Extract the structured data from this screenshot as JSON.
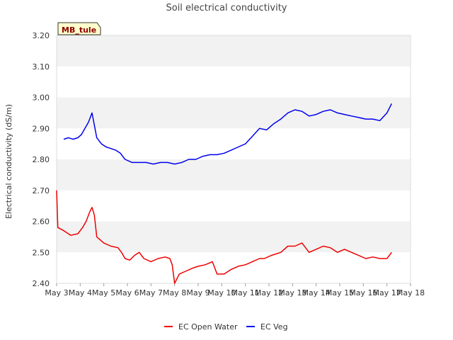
{
  "chart_data": {
    "type": "line",
    "title": "Soil electrical conductivity",
    "ylabel": "Electrical conductivity (dS/m)",
    "xlabel": "",
    "site_badge": "MB_tule",
    "ylim": [
      2.4,
      3.2
    ],
    "yticks": [
      "2.40",
      "2.50",
      "2.60",
      "2.70",
      "2.80",
      "2.90",
      "3.00",
      "3.10",
      "3.20"
    ],
    "xlim": [
      3,
      18
    ],
    "xticks": [
      "May 3",
      "May 4",
      "May 5",
      "May 6",
      "May 7",
      "May 8",
      "May 9",
      "May 10",
      "May 11",
      "May 12",
      "May 13",
      "May 14",
      "May 15",
      "May 16",
      "May 17",
      "May 18"
    ],
    "grid": "horizontal bands",
    "legend_position": "bottom-center",
    "series": [
      {
        "name": "EC Open Water",
        "color": "#ee0000",
        "points": [
          [
            3.0,
            2.7
          ],
          [
            3.05,
            2.58
          ],
          [
            3.3,
            2.57
          ],
          [
            3.6,
            2.555
          ],
          [
            3.9,
            2.56
          ],
          [
            4.1,
            2.58
          ],
          [
            4.25,
            2.6
          ],
          [
            4.4,
            2.63
          ],
          [
            4.5,
            2.645
          ],
          [
            4.6,
            2.62
          ],
          [
            4.7,
            2.55
          ],
          [
            5.0,
            2.53
          ],
          [
            5.3,
            2.52
          ],
          [
            5.6,
            2.515
          ],
          [
            5.75,
            2.5
          ],
          [
            5.9,
            2.48
          ],
          [
            6.1,
            2.475
          ],
          [
            6.3,
            2.49
          ],
          [
            6.5,
            2.5
          ],
          [
            6.7,
            2.48
          ],
          [
            7.0,
            2.47
          ],
          [
            7.3,
            2.48
          ],
          [
            7.6,
            2.485
          ],
          [
            7.8,
            2.48
          ],
          [
            7.9,
            2.46
          ],
          [
            8.0,
            2.4
          ],
          [
            8.2,
            2.43
          ],
          [
            8.5,
            2.44
          ],
          [
            8.8,
            2.45
          ],
          [
            9.0,
            2.455
          ],
          [
            9.3,
            2.46
          ],
          [
            9.6,
            2.47
          ],
          [
            9.8,
            2.43
          ],
          [
            10.1,
            2.43
          ],
          [
            10.4,
            2.445
          ],
          [
            10.7,
            2.455
          ],
          [
            11.0,
            2.46
          ],
          [
            11.3,
            2.47
          ],
          [
            11.6,
            2.48
          ],
          [
            11.8,
            2.48
          ],
          [
            12.1,
            2.49
          ],
          [
            12.5,
            2.5
          ],
          [
            12.8,
            2.52
          ],
          [
            13.1,
            2.52
          ],
          [
            13.4,
            2.53
          ],
          [
            13.7,
            2.5
          ],
          [
            14.0,
            2.51
          ],
          [
            14.3,
            2.52
          ],
          [
            14.6,
            2.515
          ],
          [
            14.9,
            2.5
          ],
          [
            15.2,
            2.51
          ],
          [
            15.5,
            2.5
          ],
          [
            15.8,
            2.49
          ],
          [
            16.1,
            2.48
          ],
          [
            16.4,
            2.485
          ],
          [
            16.7,
            2.48
          ],
          [
            17.0,
            2.48
          ],
          [
            17.2,
            2.5
          ]
        ]
      },
      {
        "name": "EC Veg",
        "color": "#0000ee",
        "points": [
          [
            3.3,
            2.865
          ],
          [
            3.5,
            2.87
          ],
          [
            3.7,
            2.865
          ],
          [
            3.9,
            2.87
          ],
          [
            4.05,
            2.88
          ],
          [
            4.2,
            2.9
          ],
          [
            4.35,
            2.92
          ],
          [
            4.5,
            2.95
          ],
          [
            4.7,
            2.87
          ],
          [
            4.9,
            2.85
          ],
          [
            5.1,
            2.84
          ],
          [
            5.3,
            2.835
          ],
          [
            5.5,
            2.83
          ],
          [
            5.7,
            2.82
          ],
          [
            5.9,
            2.8
          ],
          [
            6.2,
            2.79
          ],
          [
            6.5,
            2.79
          ],
          [
            6.8,
            2.79
          ],
          [
            7.1,
            2.785
          ],
          [
            7.4,
            2.79
          ],
          [
            7.7,
            2.79
          ],
          [
            8.0,
            2.785
          ],
          [
            8.3,
            2.79
          ],
          [
            8.6,
            2.8
          ],
          [
            8.9,
            2.8
          ],
          [
            9.2,
            2.81
          ],
          [
            9.5,
            2.815
          ],
          [
            9.8,
            2.815
          ],
          [
            10.1,
            2.82
          ],
          [
            10.4,
            2.83
          ],
          [
            10.7,
            2.84
          ],
          [
            11.0,
            2.85
          ],
          [
            11.3,
            2.875
          ],
          [
            11.6,
            2.9
          ],
          [
            11.9,
            2.895
          ],
          [
            12.2,
            2.915
          ],
          [
            12.5,
            2.93
          ],
          [
            12.8,
            2.95
          ],
          [
            13.1,
            2.96
          ],
          [
            13.4,
            2.955
          ],
          [
            13.7,
            2.94
          ],
          [
            14.0,
            2.945
          ],
          [
            14.3,
            2.955
          ],
          [
            14.6,
            2.96
          ],
          [
            14.9,
            2.95
          ],
          [
            15.2,
            2.945
          ],
          [
            15.5,
            2.94
          ],
          [
            15.8,
            2.935
          ],
          [
            16.1,
            2.93
          ],
          [
            16.4,
            2.93
          ],
          [
            16.7,
            2.925
          ],
          [
            17.0,
            2.95
          ],
          [
            17.2,
            2.98
          ]
        ]
      }
    ]
  }
}
